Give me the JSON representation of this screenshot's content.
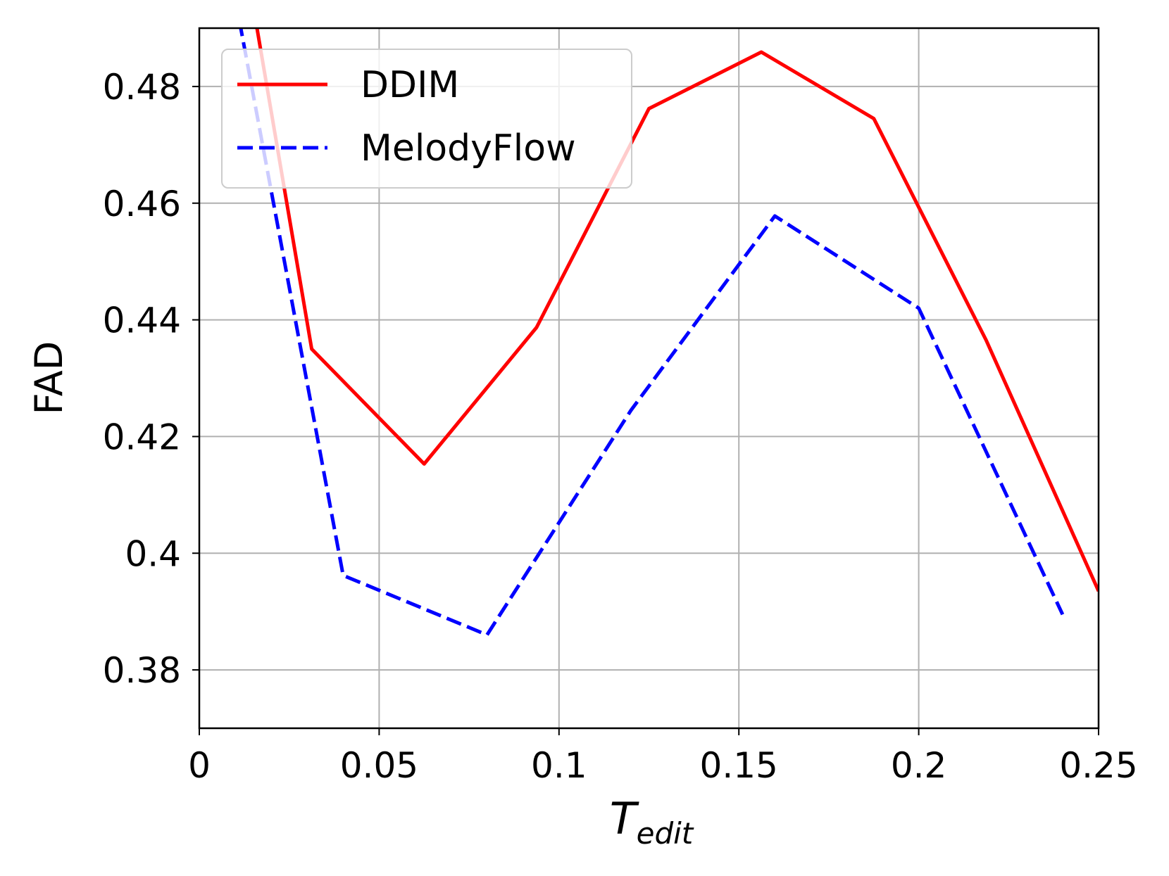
{
  "chart_data": {
    "type": "line",
    "xlabel": {
      "main": "T",
      "subscript": "edit"
    },
    "ylabel": "FAD",
    "xlim": [
      0,
      0.25
    ],
    "ylim": [
      0.37,
      0.49
    ],
    "xticks": [
      0,
      0.05,
      0.1,
      0.15,
      0.2,
      0.25
    ],
    "xtick_labels": [
      "0",
      "0.05",
      "0.1",
      "0.15",
      "0.2",
      "0.25"
    ],
    "yticks": [
      0.38,
      0.4,
      0.42,
      0.44,
      0.46,
      0.48
    ],
    "ytick_labels": [
      "0.38",
      "0.4",
      "0.42",
      "0.44",
      "0.46",
      "0.48"
    ],
    "grid": true,
    "legend_position": "top-left",
    "series": [
      {
        "name": "DDIM",
        "color": "#ff0000",
        "style": "solid",
        "x": [
          0,
          0.03125,
          0.0625,
          0.09375,
          0.125,
          0.15625,
          0.1875,
          0.21875,
          0.25
        ],
        "y": [
          0.548,
          0.435,
          0.4153,
          0.4387,
          0.4762,
          0.4859,
          0.4745,
          0.4365,
          0.3935
        ]
      },
      {
        "name": "MelodyFlow",
        "color": "#0000ff",
        "style": "dashed",
        "x": [
          0,
          0.04,
          0.08,
          0.12,
          0.16,
          0.2,
          0.24
        ],
        "y": [
          0.528,
          0.3962,
          0.386,
          0.4245,
          0.4578,
          0.442,
          0.3895
        ]
      }
    ]
  }
}
